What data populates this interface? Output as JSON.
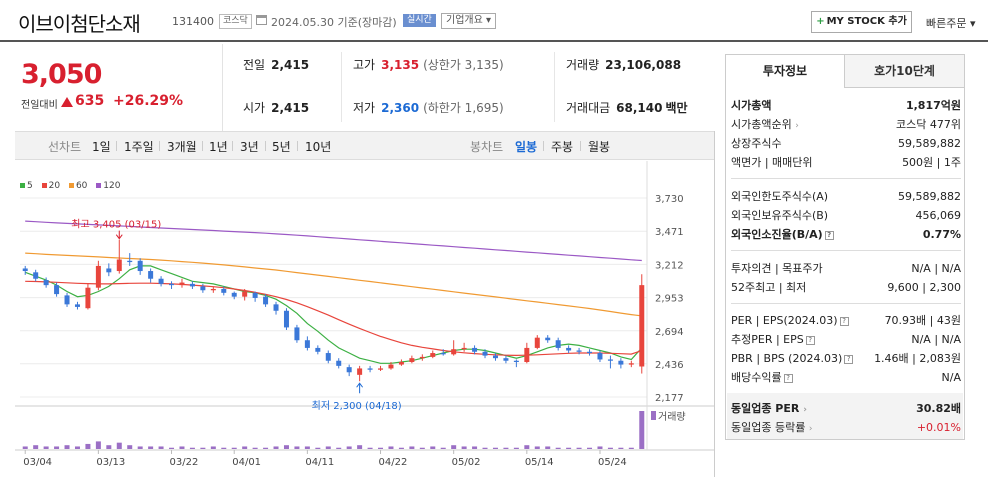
{
  "header": {
    "stock_name": "이브이첨단소재",
    "stock_code": "131400",
    "market_badge": "코스닥",
    "date": "2024.05.30",
    "basis": "기준(장마감)",
    "realtime_badge": "실시간",
    "company_overview": "기업개요",
    "mystock_button": "MY STOCK 추가",
    "quick_order": "빠른주문"
  },
  "price": {
    "current": "3,050",
    "change_label": "전일대비",
    "change": "635",
    "change_pct": "+26.29%"
  },
  "stats": {
    "prev_label": "전일",
    "prev": "2,415",
    "open_label": "시가",
    "open": "2,415",
    "high_label": "고가",
    "high": "3,135",
    "upper_limit": "(상한가 3,135)",
    "low_label": "저가",
    "low": "2,360",
    "lower_limit": "(하한가 1,695)",
    "volume_label": "거래량",
    "volume": "23,106,088",
    "amount_label": "거래대금",
    "amount": "68,140",
    "amount_unit": "백만"
  },
  "periods": {
    "line_chart": "선차트",
    "items": [
      "1일",
      "1주일",
      "3개월",
      "1년",
      "3년",
      "5년",
      "10년"
    ],
    "candle_chart": "봉차트",
    "candle_items": [
      "일봉",
      "주봉",
      "월봉"
    ],
    "selected_candle": "일봉"
  },
  "chart_data": {
    "type": "candlestick",
    "legend": [
      "5",
      "20",
      "60",
      "120"
    ],
    "legend_colors": [
      "#3cb043",
      "#e8453c",
      "#f09a32",
      "#9b59c5"
    ],
    "y_ticks": [
      "3,730",
      "3,471",
      "3,212",
      "2,953",
      "2,694",
      "2,436",
      "2,177"
    ],
    "y_tick_values": [
      3730,
      3471,
      3212,
      2953,
      2694,
      2436,
      2177
    ],
    "x_labels": [
      "03/04",
      "03/13",
      "03/22",
      "04/01",
      "04/11",
      "04/22",
      "05/02",
      "05/14",
      "05/24"
    ],
    "x_label_index": [
      0,
      7,
      14,
      20,
      27,
      34,
      41,
      48,
      55
    ],
    "ylim": [
      2177,
      3730
    ],
    "high_annotation": "최고 3,405 (03/15)",
    "high_index": 9,
    "high_value": 3405,
    "low_annotation": "최저 2,300 (04/18)",
    "low_index": 32,
    "low_value": 2300,
    "volume_label": "거래량",
    "up_color": "#e8453c",
    "down_color": "#3b78d8",
    "candles": [
      [
        3180,
        3160,
        3130,
        3200
      ],
      [
        3150,
        3100,
        3080,
        3170
      ],
      [
        3090,
        3050,
        3030,
        3110
      ],
      [
        3050,
        2980,
        2960,
        3070
      ],
      [
        2970,
        2900,
        2880,
        2990
      ],
      [
        2900,
        2880,
        2860,
        2920
      ],
      [
        2870,
        3030,
        2860,
        3060
      ],
      [
        3030,
        3200,
        3010,
        3240
      ],
      [
        3180,
        3150,
        3120,
        3220
      ],
      [
        3160,
        3250,
        3140,
        3405
      ],
      [
        3240,
        3230,
        3200,
        3300
      ],
      [
        3240,
        3160,
        3130,
        3260
      ],
      [
        3160,
        3100,
        3070,
        3180
      ],
      [
        3100,
        3060,
        3040,
        3120
      ],
      [
        3060,
        3050,
        3020,
        3080
      ],
      [
        3050,
        3070,
        3030,
        3100
      ],
      [
        3060,
        3040,
        3020,
        3080
      ],
      [
        3040,
        3010,
        2990,
        3060
      ],
      [
        3010,
        3020,
        2990,
        3040
      ],
      [
        3020,
        2990,
        2970,
        3040
      ],
      [
        2990,
        2960,
        2940,
        3000
      ],
      [
        2960,
        3000,
        2930,
        3020
      ],
      [
        2990,
        2950,
        2920,
        3000
      ],
      [
        2960,
        2900,
        2880,
        2980
      ],
      [
        2900,
        2850,
        2820,
        2920
      ],
      [
        2850,
        2720,
        2700,
        2870
      ],
      [
        2720,
        2620,
        2600,
        2740
      ],
      [
        2620,
        2560,
        2540,
        2650
      ],
      [
        2560,
        2530,
        2510,
        2580
      ],
      [
        2520,
        2460,
        2440,
        2540
      ],
      [
        2460,
        2420,
        2400,
        2480
      ],
      [
        2410,
        2370,
        2340,
        2430
      ],
      [
        2350,
        2400,
        2300,
        2420
      ],
      [
        2400,
        2390,
        2370,
        2420
      ],
      [
        2390,
        2400,
        2380,
        2420
      ],
      [
        2400,
        2430,
        2390,
        2450
      ],
      [
        2430,
        2450,
        2420,
        2470
      ],
      [
        2450,
        2480,
        2440,
        2500
      ],
      [
        2480,
        2490,
        2460,
        2510
      ],
      [
        2490,
        2520,
        2480,
        2540
      ],
      [
        2520,
        2510,
        2500,
        2550
      ],
      [
        2510,
        2550,
        2500,
        2620
      ],
      [
        2550,
        2560,
        2530,
        2600
      ],
      [
        2560,
        2530,
        2510,
        2580
      ],
      [
        2530,
        2500,
        2480,
        2550
      ],
      [
        2500,
        2480,
        2460,
        2520
      ],
      [
        2480,
        2460,
        2440,
        2500
      ],
      [
        2460,
        2450,
        2410,
        2470
      ],
      [
        2450,
        2560,
        2440,
        2600
      ],
      [
        2560,
        2640,
        2550,
        2660
      ],
      [
        2640,
        2620,
        2600,
        2660
      ],
      [
        2620,
        2560,
        2540,
        2640
      ],
      [
        2560,
        2540,
        2520,
        2580
      ],
      [
        2540,
        2530,
        2510,
        2560
      ],
      [
        2530,
        2520,
        2500,
        2550
      ],
      [
        2520,
        2470,
        2450,
        2540
      ],
      [
        2470,
        2460,
        2400,
        2500
      ],
      [
        2460,
        2430,
        2400,
        2480
      ],
      [
        2430,
        2440,
        2410,
        2460
      ],
      [
        2415,
        3050,
        2360,
        3135
      ]
    ],
    "ma5": [
      3150,
      3120,
      3090,
      3050,
      3000,
      2960,
      2970,
      3000,
      3040,
      3100,
      3170,
      3200,
      3200,
      3170,
      3140,
      3110,
      3080,
      3070,
      3060,
      3040,
      3020,
      3000,
      2990,
      2970,
      2940,
      2890,
      2830,
      2750,
      2690,
      2620,
      2560,
      2520,
      2480,
      2460,
      2440,
      2440,
      2450,
      2460,
      2480,
      2500,
      2520,
      2540,
      2550,
      2550,
      2540,
      2520,
      2500,
      2480,
      2500,
      2530,
      2560,
      2580,
      2590,
      2580,
      2560,
      2540,
      2520,
      2490,
      2470,
      2560
    ],
    "ma20": [
      3080,
      3078,
      3075,
      3072,
      3068,
      3064,
      3062,
      3060,
      3060,
      3062,
      3064,
      3065,
      3065,
      3063,
      3060,
      3056,
      3050,
      3044,
      3038,
      3030,
      3020,
      3008,
      2994,
      2978,
      2960,
      2938,
      2912,
      2882,
      2850,
      2816,
      2780,
      2745,
      2712,
      2680,
      2650,
      2624,
      2600,
      2580,
      2565,
      2552,
      2540,
      2530,
      2522,
      2516,
      2510,
      2506,
      2503,
      2502,
      2503,
      2506,
      2510,
      2514,
      2518,
      2520,
      2520,
      2520,
      2518,
      2515,
      2512,
      2540
    ],
    "ma60": [
      3300,
      3295,
      3290,
      3286,
      3282,
      3278,
      3274,
      3270,
      3266,
      3262,
      3258,
      3254,
      3250,
      3245,
      3240,
      3234,
      3228,
      3222,
      3215,
      3208,
      3200,
      3192,
      3184,
      3176,
      3168,
      3158,
      3148,
      3138,
      3128,
      3118,
      3108,
      3098,
      3088,
      3078,
      3068,
      3058,
      3048,
      3038,
      3028,
      3018,
      3008,
      2998,
      2988,
      2978,
      2968,
      2958,
      2948,
      2938,
      2928,
      2918,
      2908,
      2898,
      2888,
      2878,
      2868,
      2856,
      2844,
      2832,
      2820,
      2810
    ],
    "ma120": [
      3550,
      3545,
      3540,
      3536,
      3532,
      3528,
      3524,
      3520,
      3516,
      3512,
      3508,
      3504,
      3500,
      3496,
      3492,
      3488,
      3484,
      3480,
      3476,
      3472,
      3468,
      3464,
      3460,
      3455,
      3450,
      3445,
      3440,
      3434,
      3428,
      3422,
      3416,
      3410,
      3404,
      3398,
      3392,
      3386,
      3380,
      3374,
      3368,
      3362,
      3356,
      3350,
      3344,
      3338,
      3332,
      3326,
      3320,
      3314,
      3308,
      3302,
      3296,
      3290,
      3284,
      3278,
      3272,
      3266,
      3260,
      3254,
      3248,
      3242
    ],
    "volume": [
      2,
      3,
      2,
      2,
      3,
      2,
      4,
      6,
      3,
      5,
      3,
      2,
      2,
      2,
      1,
      2,
      1,
      1,
      2,
      1,
      1,
      2,
      1,
      1,
      2,
      3,
      2,
      2,
      1,
      2,
      1,
      2,
      3,
      1,
      1,
      2,
      1,
      2,
      1,
      2,
      1,
      3,
      2,
      2,
      1,
      1,
      1,
      1,
      3,
      2,
      2,
      1,
      1,
      1,
      1,
      2,
      1,
      1,
      1,
      30
    ]
  },
  "info_panel": {
    "tab_active": "투자정보",
    "tab_inactive": "호가10단계",
    "section1": [
      {
        "k": "시가총액",
        "v": "1,817억원",
        "bold": true
      },
      {
        "k": "시가총액순위",
        "v": "코스닥 477위"
      },
      {
        "k": "상장주식수",
        "v": "59,589,882"
      },
      {
        "k": "액면가 | 매매단위",
        "v": "500원 | 1주"
      }
    ],
    "section2": [
      {
        "k": "외국인한도주식수(A)",
        "v": "59,589,882"
      },
      {
        "k": "외국인보유주식수(B)",
        "v": "456,069"
      },
      {
        "k": "외국인소진율(B/A)",
        "v": "0.77%",
        "bold": true
      }
    ],
    "section3": [
      {
        "k": "투자의견 | 목표주가",
        "v": "N/A | N/A"
      },
      {
        "k": "52주최고 | 최저",
        "v": "9,600 | 2,300"
      }
    ],
    "section4": [
      {
        "k": "PER | EPS(2024.03)",
        "v": "70.93배 | 43원"
      },
      {
        "k": "추정PER | EPS",
        "v": "N/A | N/A"
      },
      {
        "k": "PBR | BPS (2024.03)",
        "v": "1.46배 | 2,083원"
      },
      {
        "k": "배당수익률",
        "v": "N/A"
      }
    ],
    "section5": [
      {
        "k": "동일업종 PER",
        "v": "30.82배",
        "bold": true
      },
      {
        "k": "동일업종 등락률",
        "v": "+0.01%",
        "red": true
      }
    ]
  }
}
